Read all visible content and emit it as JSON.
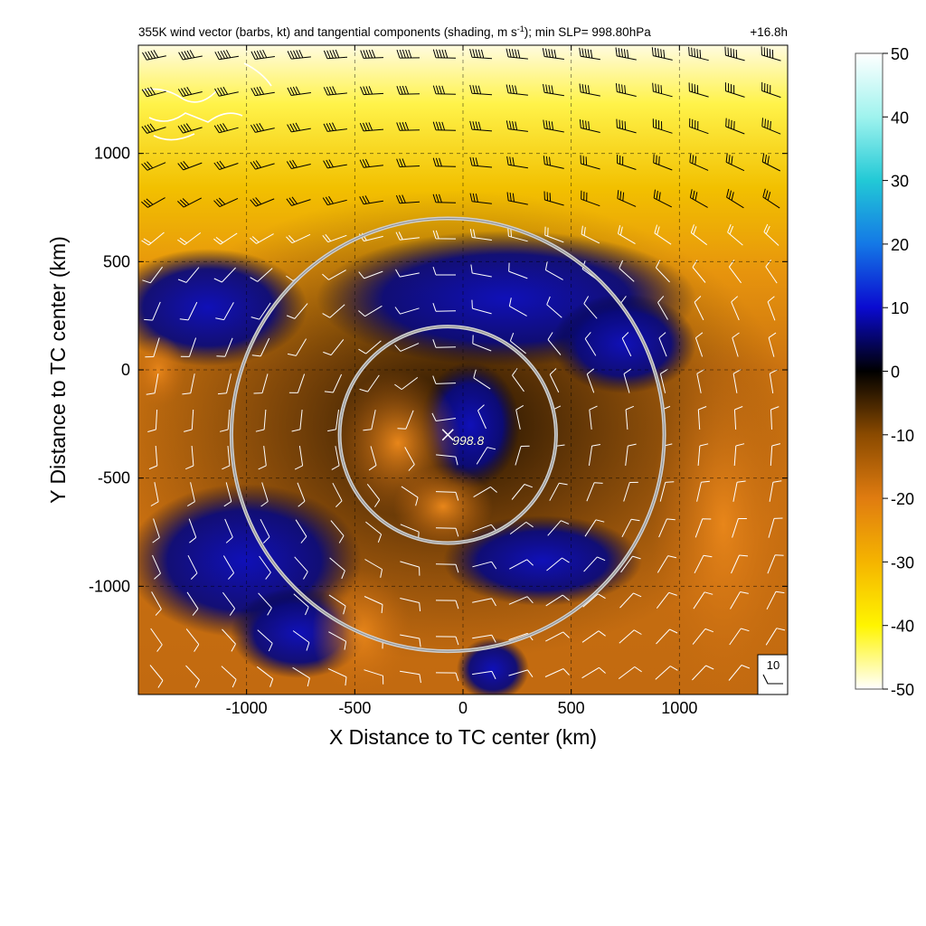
{
  "chart_data": {
    "type": "heatmap",
    "title": "355K wind vector (barbs, kt) and tangential components (shading, m s",
    "title_sup": "-1",
    "title_tail": "); min SLP= 998.80hPa",
    "time_label": "+16.8h",
    "xlabel": "X Distance to TC center (km)",
    "ylabel": "Y Distance to TC center (km)",
    "xlim": [
      -1500,
      1500
    ],
    "ylim": [
      -1500,
      1500
    ],
    "xticks": [
      -1000,
      -500,
      0,
      500,
      1000
    ],
    "yticks": [
      -1000,
      -500,
      0,
      500,
      1000
    ],
    "grid": true,
    "colorbar": {
      "range": [
        -50,
        50
      ],
      "ticks": [
        50,
        40,
        30,
        20,
        10,
        0,
        -10,
        -20,
        -30,
        -40,
        -50
      ]
    },
    "center_marker": {
      "x": -70,
      "y": -300,
      "label": "998.8"
    },
    "range_rings": [
      {
        "center_x": -70,
        "center_y": -300,
        "radius_km": 500
      },
      {
        "center_x": -70,
        "center_y": -300,
        "radius_km": 1000
      }
    ],
    "reference_barb": {
      "label": "10"
    }
  }
}
